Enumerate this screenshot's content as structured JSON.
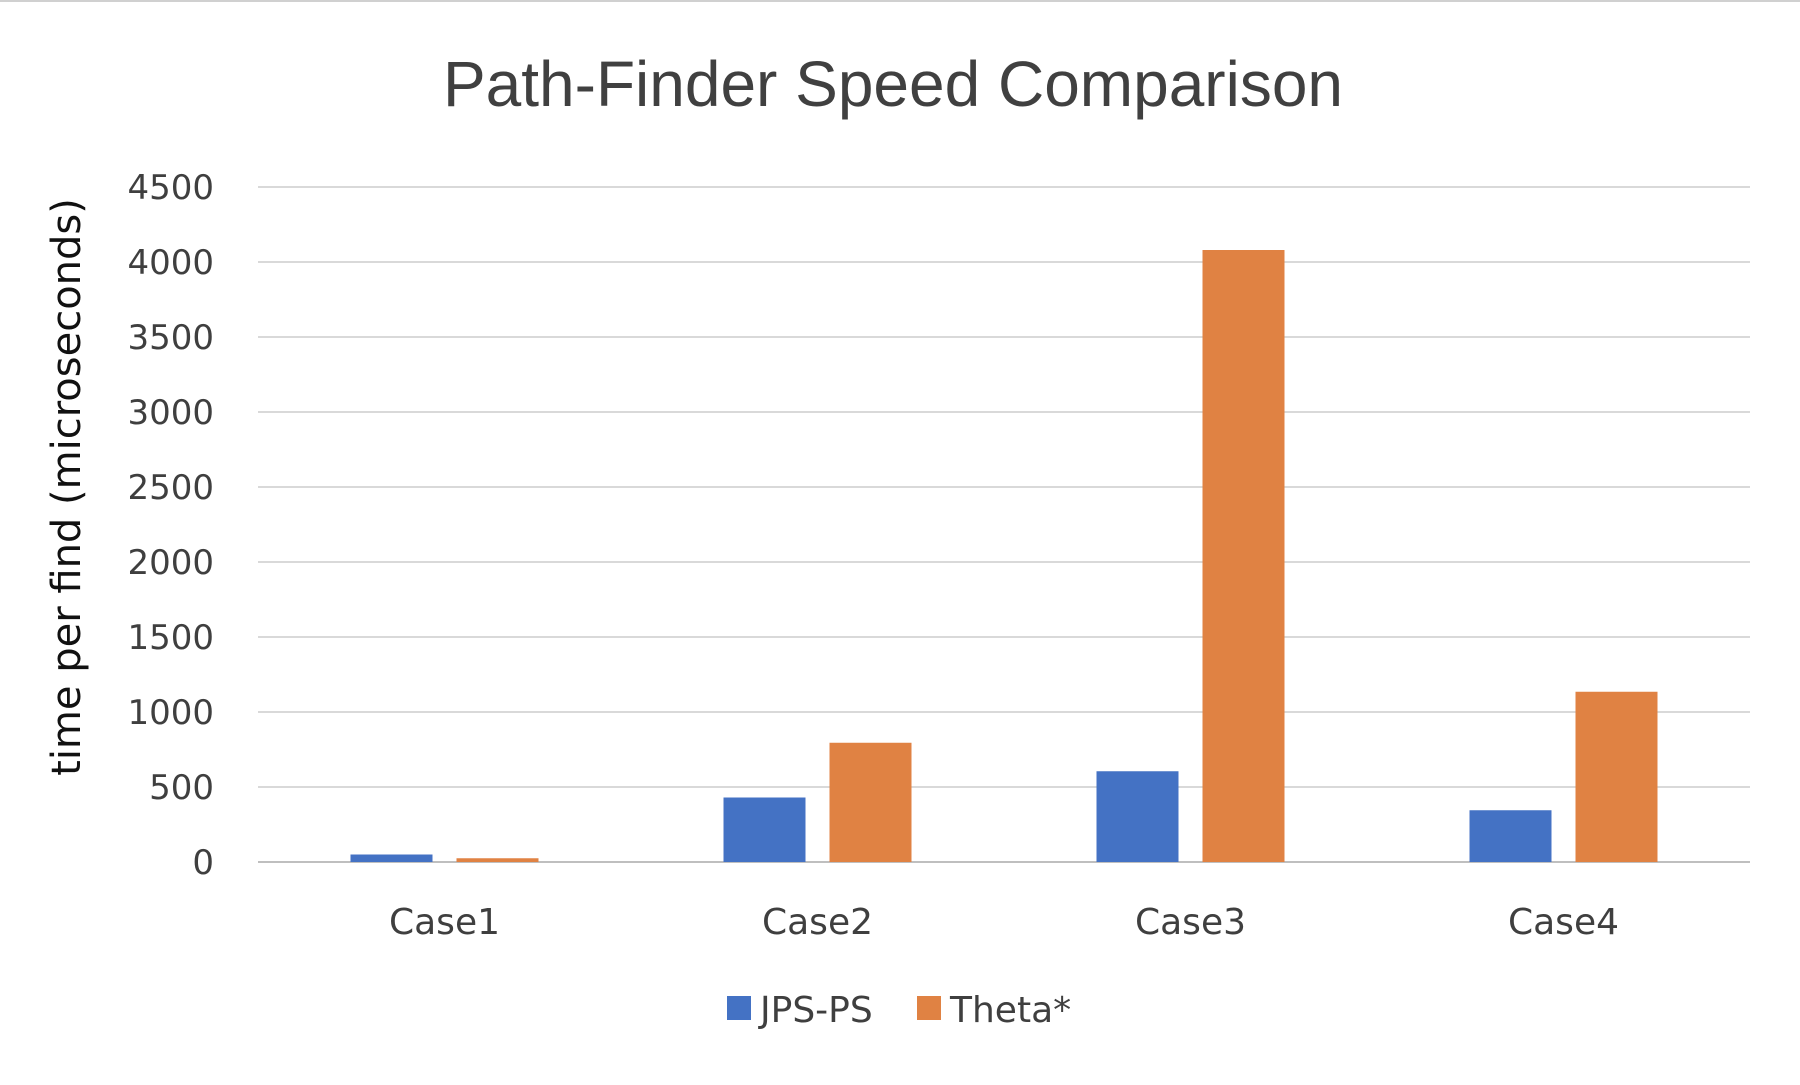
{
  "chart_data": {
    "type": "bar",
    "title": "Path-Finder Speed Comparison",
    "xlabel": "",
    "ylabel": "time per find (microseconds)",
    "categories": [
      "Case1",
      "Case2",
      "Case3",
      "Case4"
    ],
    "series": [
      {
        "name": "JPS-PS",
        "color": "#4472c4",
        "values": [
          50,
          430,
          605,
          345
        ]
      },
      {
        "name": "Theta*",
        "color": "#e08243",
        "values": [
          25,
          795,
          4080,
          1135
        ]
      }
    ],
    "ylim": [
      0,
      4500
    ],
    "yticks": [
      "0",
      "500",
      "1000",
      "1500",
      "2000",
      "2500",
      "3000",
      "3500",
      "4000",
      "4500"
    ],
    "grid": true,
    "legend_position": "bottom"
  }
}
